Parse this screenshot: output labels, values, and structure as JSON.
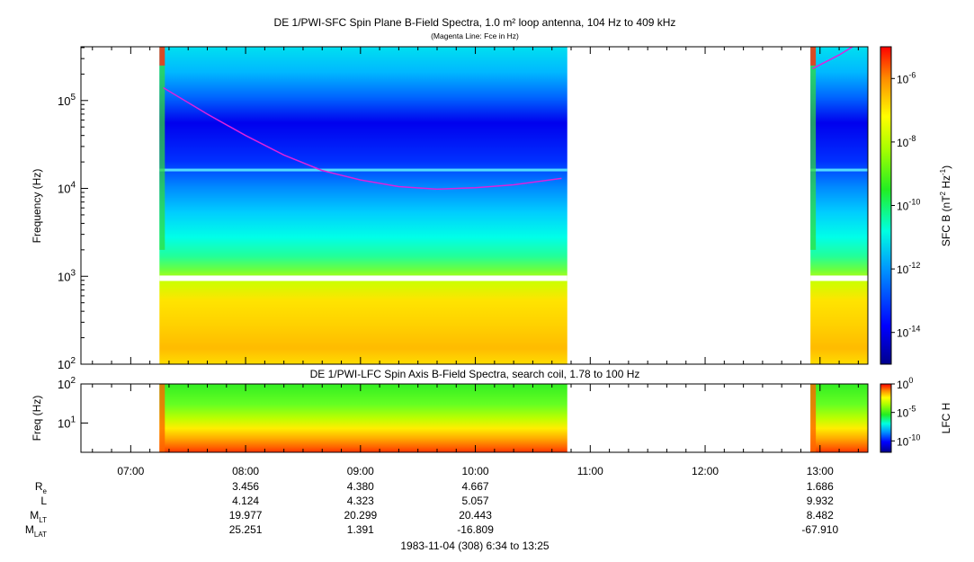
{
  "chart_data": [
    {
      "type": "heatmap",
      "title": "DE 1/PWI-SFC  Spin Plane B-Field Spectra, 1.0 m² loop antenna, 104 Hz to 409 kHz",
      "subtitle": "(Magenta Line: Fce in Hz)",
      "ylabel": "Frequency (Hz)",
      "yscale": "log",
      "ylim": [
        100,
        409000
      ],
      "yticks": [
        {
          "v": 100,
          "b": "10",
          "e": "2"
        },
        {
          "v": 1000,
          "b": "10",
          "e": "3"
        },
        {
          "v": 10000,
          "b": "10",
          "e": "4"
        },
        {
          "v": 100000,
          "b": "10",
          "e": "5"
        }
      ],
      "data_intervals": [
        [
          "07:15",
          "10:48"
        ],
        [
          "12:55",
          "13:25"
        ]
      ],
      "colorbar": {
        "label_main": "SFC B (nT",
        "label_sup1": "2",
        "label_mid": " Hz",
        "label_sup2": "-1",
        "label_end": ")",
        "scale": "log",
        "range": [
          1e-15,
          1e-05
        ],
        "ticks": [
          {
            "v": 1e-06,
            "b": "10",
            "e": "-6"
          },
          {
            "v": 1e-08,
            "b": "10",
            "e": "-8"
          },
          {
            "v": 1e-10,
            "b": "10",
            "e": "-10"
          },
          {
            "v": 1e-12,
            "b": "10",
            "e": "-12"
          },
          {
            "v": 1e-14,
            "b": "10",
            "e": "-14"
          }
        ]
      },
      "fce_line": {
        "color": "#dd22dd",
        "segments": [
          [
            [
              "07:17",
              140000
            ],
            [
              "07:40",
              70000
            ],
            [
              "08:00",
              40000
            ],
            [
              "08:20",
              24000
            ],
            [
              "08:40",
              16000
            ],
            [
              "09:00",
              12500
            ],
            [
              "09:20",
              10500
            ],
            [
              "09:40",
              9800
            ],
            [
              "10:00",
              10200
            ],
            [
              "10:20",
              11000
            ],
            [
              "10:45",
              13000
            ]
          ],
          [
            [
              "12:56",
              230000
            ],
            [
              "13:10",
              330000
            ],
            [
              "13:17",
              409000
            ]
          ]
        ]
      }
    },
    {
      "type": "heatmap",
      "title": "DE 1/PWI-LFC  Spin Axis B-Field Spectra, search coil, 1.78 to 100 Hz",
      "ylabel": "Freq (Hz)",
      "yscale": "log",
      "ylim": [
        1.78,
        100
      ],
      "yticks": [
        {
          "v": 10,
          "b": "10",
          "e": "1"
        },
        {
          "v": 100,
          "b": "10",
          "e": "2"
        }
      ],
      "data_intervals": [
        [
          "07:15",
          "10:48"
        ],
        [
          "12:55",
          "13:25"
        ]
      ],
      "colorbar": {
        "label_main": "LFC H",
        "scale": "log",
        "range": [
          1e-12,
          1
        ],
        "ticks": [
          {
            "v": 1,
            "b": "10",
            "e": "0"
          },
          {
            "v": 1e-05,
            "b": "10",
            "e": "-5"
          },
          {
            "v": 1e-10,
            "b": "10",
            "e": "-10"
          }
        ]
      }
    }
  ],
  "time_axis": {
    "range": [
      "06:34",
      "13:25"
    ],
    "ticks": [
      "07:00",
      "08:00",
      "09:00",
      "10:00",
      "11:00",
      "12:00",
      "13:00"
    ]
  },
  "ephemeris": {
    "rows": [
      {
        "label": "R",
        "sub": "e",
        "values": [
          "3.456",
          "4.380",
          "4.667",
          "1.686"
        ]
      },
      {
        "label": "L",
        "sub": "",
        "values": [
          "4.124",
          "4.323",
          "5.057",
          "9.932"
        ]
      },
      {
        "label": "M",
        "sub": "LT",
        "values": [
          "19.977",
          "20.299",
          "20.443",
          "8.482"
        ]
      },
      {
        "label": "M",
        "sub": "LAT",
        "values": [
          "25.251",
          "1.391",
          "-16.809",
          "-67.910"
        ]
      }
    ],
    "at_times": [
      "08:00",
      "09:00",
      "10:00",
      "13:00"
    ]
  },
  "footer": "1983-11-04 (308) 6:34 to 13:25"
}
